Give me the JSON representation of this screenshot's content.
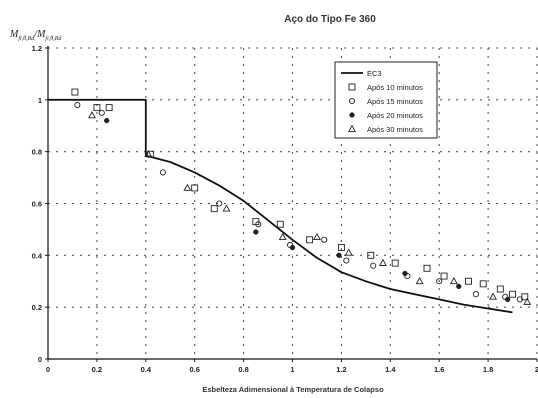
{
  "chart_data": {
    "type": "scatter",
    "title": "Aço do Tipo Fe 360",
    "ylabel": "M_fi,θ,Rd / M_fi,θ,Rd",
    "ylabel_main": "M",
    "ylabel_sub1": "fi,θ,Rd",
    "ylabel_sep": "/M",
    "ylabel_sub2": "fi,θ,Rd",
    "xlabel": "Esbelteza Adimensional à Temperatura de Colapso",
    "xlim": [
      0,
      2
    ],
    "ylim": [
      0,
      1.2
    ],
    "xticks": [
      "0",
      "0.2",
      "0.4",
      "0.6",
      "0.8",
      "1",
      "1.2",
      "1.4",
      "1.6",
      "1.8",
      "2"
    ],
    "yticks": [
      "0",
      "0.2",
      "0.4",
      "0.6",
      "0.8",
      "1",
      "1.2"
    ],
    "grid": true,
    "legend_position": "top-right",
    "series": [
      {
        "name": "EC3",
        "marker": "line",
        "x": [
          0,
          0.4,
          0.4,
          0.5,
          0.6,
          0.7,
          0.8,
          0.9,
          1.0,
          1.1,
          1.2,
          1.3,
          1.4,
          1.5,
          1.6,
          1.7,
          1.8,
          1.9
        ],
        "y": [
          1.0,
          1.0,
          0.785,
          0.76,
          0.72,
          0.67,
          0.61,
          0.535,
          0.46,
          0.39,
          0.335,
          0.3,
          0.27,
          0.25,
          0.23,
          0.21,
          0.195,
          0.18
        ]
      },
      {
        "name": "Após 10 minutos",
        "marker": "square",
        "x": [
          0.11,
          0.2,
          0.25,
          0.42,
          0.6,
          0.68,
          0.85,
          0.95,
          1.07,
          1.2,
          1.32,
          1.42,
          1.55,
          1.62,
          1.72,
          1.78,
          1.85,
          1.9,
          1.95
        ],
        "y": [
          1.03,
          0.97,
          0.97,
          0.79,
          0.66,
          0.58,
          0.53,
          0.52,
          0.46,
          0.43,
          0.4,
          0.37,
          0.35,
          0.32,
          0.3,
          0.29,
          0.27,
          0.25,
          0.24
        ]
      },
      {
        "name": "Após 15 minutos",
        "marker": "circle",
        "x": [
          0.12,
          0.22,
          0.47,
          0.7,
          0.86,
          0.99,
          1.13,
          1.22,
          1.33,
          1.47,
          1.6,
          1.75,
          1.87,
          1.93
        ],
        "y": [
          0.98,
          0.95,
          0.72,
          0.6,
          0.52,
          0.44,
          0.46,
          0.38,
          0.36,
          0.32,
          0.3,
          0.25,
          0.24,
          0.23
        ]
      },
      {
        "name": "Após 20 minutos",
        "marker": "dot",
        "x": [
          0.24,
          0.85,
          1.0,
          1.19,
          1.46,
          1.68,
          1.88
        ],
        "y": [
          0.92,
          0.49,
          0.43,
          0.4,
          0.33,
          0.28,
          0.23
        ]
      },
      {
        "name": "Após 30 minutos",
        "marker": "triangle",
        "x": [
          0.18,
          0.41,
          0.57,
          0.73,
          0.96,
          1.1,
          1.23,
          1.37,
          1.52,
          1.66,
          1.82,
          1.96
        ],
        "y": [
          0.94,
          0.79,
          0.66,
          0.58,
          0.47,
          0.47,
          0.41,
          0.37,
          0.3,
          0.3,
          0.24,
          0.22
        ]
      }
    ]
  }
}
